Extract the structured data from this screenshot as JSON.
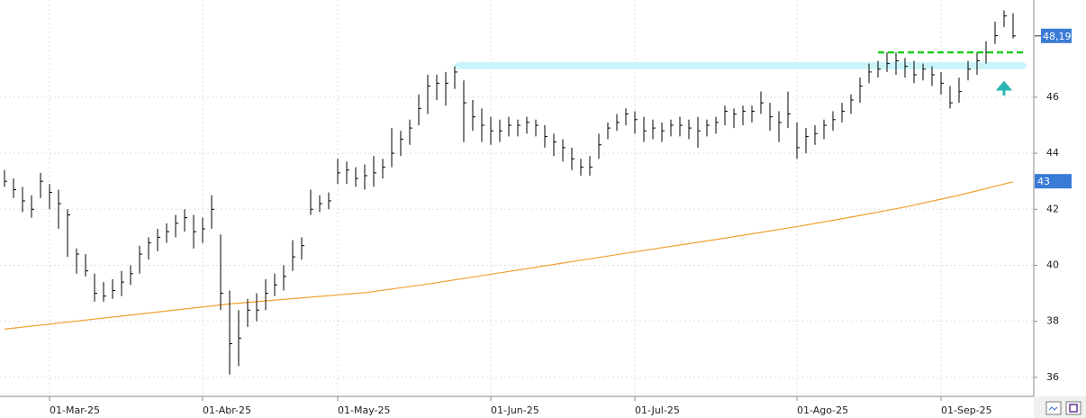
{
  "chart_data": {
    "type": "ohlc",
    "color": "#000000",
    "categories": [
      null,
      null,
      null,
      null,
      null,
      "01-Mar-25",
      null,
      null,
      null,
      null,
      null,
      null,
      null,
      null,
      null,
      null,
      null,
      null,
      null,
      null,
      null,
      null,
      "01-Abr-25",
      null,
      null,
      null,
      null,
      null,
      null,
      null,
      null,
      null,
      null,
      null,
      null,
      null,
      null,
      "01-May-25",
      null,
      null,
      null,
      null,
      null,
      null,
      null,
      null,
      null,
      null,
      null,
      null,
      null,
      null,
      null,
      null,
      "01-Jun-25",
      null,
      null,
      null,
      null,
      null,
      null,
      null,
      null,
      null,
      null,
      null,
      null,
      null,
      null,
      null,
      "01-Jul-25",
      null,
      null,
      null,
      null,
      null,
      null,
      null,
      null,
      null,
      null,
      null,
      null,
      null,
      null,
      null,
      null,
      null,
      "01-Ago-25",
      null,
      null,
      null,
      null,
      null,
      null,
      null,
      null,
      null,
      null,
      null,
      null,
      null,
      null,
      null,
      "01-Sep-25",
      null,
      null,
      null,
      null,
      null,
      null,
      null,
      null
    ],
    "high": [
      43.4,
      43.1,
      42.8,
      42.5,
      43.3,
      42.9,
      42.7,
      42.0,
      40.6,
      40.4,
      39.7,
      39.4,
      39.5,
      39.8,
      40.0,
      40.7,
      41.0,
      41.3,
      41.5,
      41.8,
      42.0,
      41.8,
      41.7,
      42.5,
      41.1,
      39.1,
      38.4,
      38.8,
      39.0,
      39.5,
      39.7,
      40.0,
      40.9,
      41.0,
      42.7,
      42.5,
      42.6,
      43.8,
      43.7,
      43.5,
      43.6,
      43.9,
      43.8,
      44.9,
      44.8,
      45.2,
      46.1,
      46.8,
      46.8,
      46.9,
      47.1,
      46.6,
      45.9,
      45.6,
      45.3,
      45.2,
      45.3,
      45.2,
      45.3,
      45.2,
      45.0,
      44.7,
      44.5,
      44.2,
      43.8,
      43.9,
      44.7,
      45.1,
      45.4,
      45.6,
      45.5,
      45.3,
      45.2,
      45.1,
      45.2,
      45.3,
      45.2,
      45.3,
      45.2,
      45.3,
      45.7,
      45.6,
      45.7,
      45.7,
      46.2,
      45.8,
      45.5,
      46.2,
      45.1,
      44.9,
      45.0,
      45.2,
      45.5,
      45.8,
      46.1,
      46.7,
      47.2,
      47.3,
      47.6,
      47.6,
      47.4,
      47.3,
      47.2,
      47.1,
      46.9,
      46.4,
      46.7,
      47.3,
      47.6,
      48.0,
      48.7,
      49.1,
      49.0
    ],
    "low": [
      42.8,
      42.4,
      41.9,
      41.7,
      42.4,
      42.0,
      41.3,
      40.3,
      39.7,
      39.6,
      38.7,
      38.7,
      38.8,
      38.9,
      39.3,
      39.7,
      40.2,
      40.5,
      40.8,
      41.0,
      41.2,
      40.6,
      40.8,
      41.3,
      38.4,
      36.1,
      36.4,
      37.8,
      38.0,
      38.4,
      38.9,
      39.1,
      39.8,
      40.2,
      41.8,
      41.9,
      42.0,
      42.9,
      42.9,
      42.8,
      42.7,
      42.8,
      43.1,
      43.5,
      43.9,
      44.3,
      45.0,
      45.4,
      45.9,
      45.7,
      46.3,
      44.4,
      44.8,
      44.4,
      44.3,
      44.4,
      44.6,
      44.6,
      44.7,
      44.6,
      44.2,
      43.9,
      43.7,
      43.4,
      43.2,
      43.2,
      43.8,
      44.5,
      44.8,
      45.0,
      44.7,
      44.4,
      44.5,
      44.4,
      44.6,
      44.6,
      44.5,
      44.2,
      44.6,
      44.7,
      45.0,
      44.9,
      45.0,
      45.1,
      45.4,
      44.8,
      44.4,
      44.9,
      43.8,
      44.0,
      44.3,
      44.5,
      44.8,
      45.1,
      45.4,
      45.8,
      46.5,
      46.7,
      46.9,
      46.8,
      46.7,
      46.5,
      46.6,
      46.4,
      46.1,
      45.6,
      45.8,
      46.6,
      46.8,
      47.2,
      47.9,
      48.5,
      48.1
    ],
    "close": [
      43.0,
      42.7,
      42.3,
      42.0,
      43.0,
      42.6,
      42.2,
      41.8,
      40.4,
      39.8,
      39.0,
      38.9,
      39.1,
      39.4,
      39.7,
      40.4,
      40.8,
      41.0,
      41.2,
      41.5,
      41.7,
      41.2,
      41.3,
      42.0,
      39.0,
      37.2,
      37.4,
      38.4,
      38.4,
      39.0,
      39.3,
      39.6,
      40.3,
      40.7,
      42.0,
      42.2,
      42.3,
      43.3,
      43.4,
      43.1,
      43.2,
      43.3,
      43.5,
      44.0,
      44.5,
      44.9,
      45.6,
      46.4,
      46.5,
      46.5,
      46.9,
      45.8,
      45.3,
      45.0,
      44.8,
      44.8,
      45.0,
      45.0,
      45.1,
      45.0,
      44.6,
      44.4,
      44.2,
      43.8,
      43.5,
      43.5,
      44.3,
      44.9,
      45.1,
      45.4,
      45.2,
      44.8,
      44.9,
      44.8,
      45.0,
      45.0,
      44.9,
      44.8,
      45.0,
      45.1,
      45.5,
      45.4,
      45.5,
      45.5,
      45.8,
      45.3,
      45.1,
      45.4,
      44.2,
      44.6,
      44.7,
      45.0,
      45.2,
      45.5,
      45.9,
      46.4,
      46.9,
      47.0,
      47.2,
      47.3,
      47.1,
      46.8,
      47.0,
      46.8,
      46.5,
      45.8,
      46.2,
      47.0,
      47.3,
      47.6,
      48.2,
      48.9,
      48.19
    ],
    "last_price": {
      "value": 48.19,
      "label": "48,19"
    },
    "ma": {
      "color": "#f0a030",
      "x": [
        0,
        10,
        20,
        25,
        32,
        40,
        47,
        54,
        62,
        70,
        79,
        88,
        94,
        100,
        106,
        112
      ],
      "values": [
        37.72,
        38.08,
        38.44,
        38.62,
        38.81,
        39.02,
        39.33,
        39.68,
        40.08,
        40.48,
        40.92,
        41.38,
        41.72,
        42.08,
        42.5,
        42.98
      ],
      "last_label": 43
    },
    "resistance": {
      "value": 47.6,
      "color": "#22cc22"
    },
    "zone": {
      "values": [
        47.0,
        47.25
      ],
      "color": "#c8f4fa"
    },
    "ylim": [
      35.32,
      49.47
    ],
    "yticks": [
      36,
      38,
      40,
      42,
      44,
      46
    ],
    "grid": true
  }
}
